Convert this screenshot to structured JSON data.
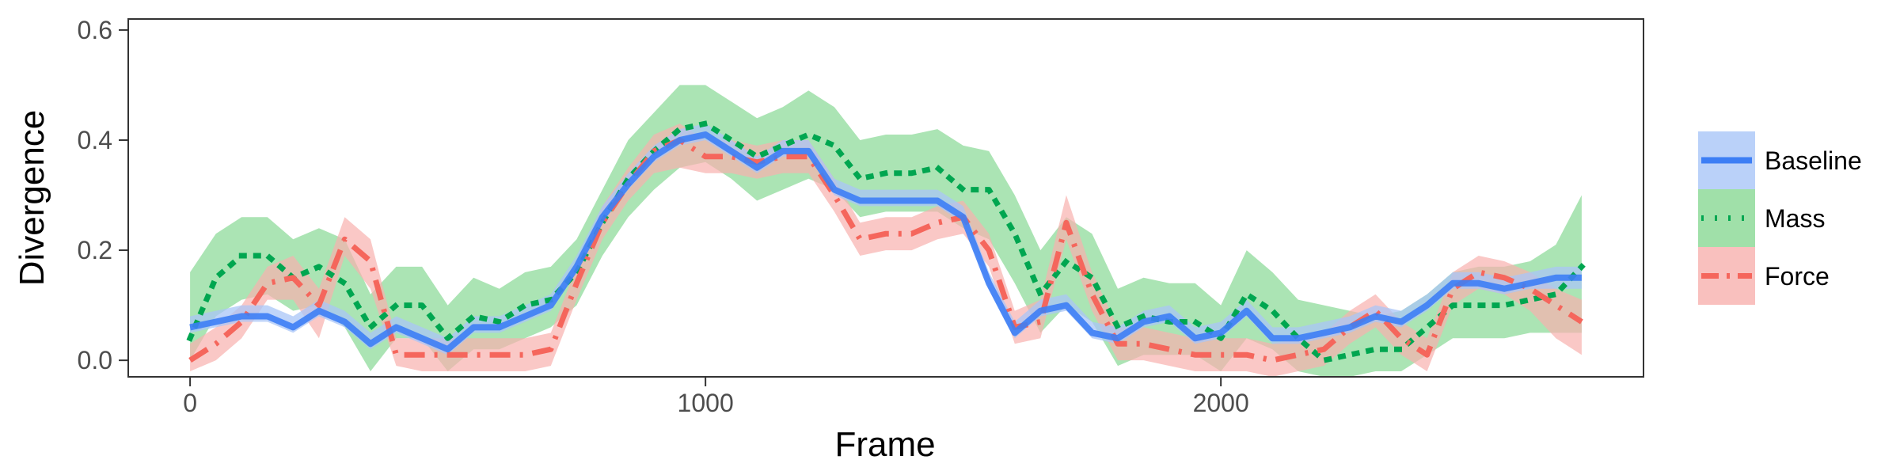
{
  "chart_data": {
    "type": "line",
    "xlabel": "Frame",
    "ylabel": "Divergence",
    "xlim": [
      -120,
      2820
    ],
    "ylim": [
      -0.03,
      0.62
    ],
    "xticks": [
      0,
      1000,
      2000
    ],
    "xtick_labels": [
      "0",
      "1000",
      "2000"
    ],
    "yticks": [
      0.0,
      0.2,
      0.4,
      0.6
    ],
    "ytick_labels": [
      "0.0",
      "0.2",
      "0.4",
      "0.6"
    ],
    "grid": false,
    "legend": "right",
    "x": [
      0,
      50,
      100,
      150,
      200,
      250,
      300,
      350,
      400,
      450,
      500,
      550,
      600,
      650,
      700,
      750,
      800,
      850,
      900,
      950,
      1000,
      1050,
      1100,
      1150,
      1200,
      1250,
      1300,
      1350,
      1400,
      1450,
      1500,
      1550,
      1600,
      1650,
      1700,
      1750,
      1800,
      1850,
      1900,
      1950,
      2000,
      2050,
      2100,
      2150,
      2200,
      2250,
      2300,
      2350,
      2400,
      2450,
      2500,
      2550,
      2600,
      2650,
      2700
    ],
    "series": [
      {
        "name": "Baseline",
        "color": "#3d7ef5",
        "style": "solid",
        "values": [
          0.06,
          0.07,
          0.08,
          0.08,
          0.06,
          0.09,
          0.07,
          0.03,
          0.06,
          0.04,
          0.02,
          0.06,
          0.06,
          0.08,
          0.1,
          0.17,
          0.26,
          0.32,
          0.37,
          0.4,
          0.41,
          0.38,
          0.35,
          0.38,
          0.38,
          0.31,
          0.29,
          0.29,
          0.29,
          0.29,
          0.26,
          0.14,
          0.05,
          0.09,
          0.1,
          0.05,
          0.04,
          0.07,
          0.08,
          0.04,
          0.05,
          0.09,
          0.04,
          0.04,
          0.05,
          0.06,
          0.08,
          0.07,
          0.1,
          0.14,
          0.14,
          0.13,
          0.14,
          0.15,
          0.15
        ],
        "lower": [
          0.05,
          0.06,
          0.07,
          0.07,
          0.05,
          0.08,
          0.06,
          0.02,
          0.05,
          0.03,
          0.01,
          0.05,
          0.05,
          0.07,
          0.09,
          0.16,
          0.25,
          0.31,
          0.36,
          0.39,
          0.4,
          0.37,
          0.34,
          0.37,
          0.37,
          0.3,
          0.28,
          0.28,
          0.28,
          0.28,
          0.25,
          0.13,
          0.04,
          0.08,
          0.09,
          0.04,
          0.03,
          0.06,
          0.07,
          0.03,
          0.04,
          0.08,
          0.03,
          0.03,
          0.04,
          0.05,
          0.07,
          0.06,
          0.09,
          0.13,
          0.13,
          0.12,
          0.13,
          0.13,
          0.13
        ],
        "upper": [
          0.08,
          0.09,
          0.1,
          0.1,
          0.08,
          0.11,
          0.09,
          0.05,
          0.08,
          0.06,
          0.04,
          0.08,
          0.08,
          0.1,
          0.12,
          0.19,
          0.28,
          0.34,
          0.39,
          0.42,
          0.43,
          0.4,
          0.37,
          0.4,
          0.4,
          0.33,
          0.31,
          0.31,
          0.31,
          0.31,
          0.28,
          0.16,
          0.07,
          0.11,
          0.12,
          0.07,
          0.06,
          0.09,
          0.1,
          0.06,
          0.07,
          0.11,
          0.06,
          0.06,
          0.07,
          0.08,
          0.1,
          0.09,
          0.12,
          0.16,
          0.16,
          0.15,
          0.16,
          0.17,
          0.17
        ]
      },
      {
        "name": "Mass",
        "color": "#00a650",
        "fill": "#88d894",
        "style": "dotted",
        "values": [
          0.04,
          0.15,
          0.19,
          0.19,
          0.15,
          0.17,
          0.14,
          0.06,
          0.1,
          0.1,
          0.04,
          0.08,
          0.07,
          0.1,
          0.11,
          0.16,
          0.25,
          0.33,
          0.38,
          0.42,
          0.43,
          0.4,
          0.37,
          0.39,
          0.41,
          0.39,
          0.33,
          0.34,
          0.34,
          0.35,
          0.31,
          0.31,
          0.23,
          0.12,
          0.18,
          0.15,
          0.06,
          0.08,
          0.07,
          0.07,
          0.04,
          0.12,
          0.09,
          0.04,
          0.0,
          0.01,
          0.02,
          0.02,
          0.06,
          0.1,
          0.1,
          0.1,
          0.11,
          0.12,
          0.17
        ],
        "lower": [
          0.0,
          0.08,
          0.11,
          0.12,
          0.09,
          0.1,
          0.06,
          -0.02,
          0.04,
          0.04,
          -0.02,
          0.02,
          0.02,
          0.04,
          0.06,
          0.1,
          0.19,
          0.26,
          0.31,
          0.35,
          0.36,
          0.33,
          0.29,
          0.31,
          0.33,
          0.31,
          0.26,
          0.27,
          0.27,
          0.27,
          0.24,
          0.22,
          0.14,
          0.05,
          0.1,
          0.07,
          -0.01,
          0.01,
          0.01,
          0.01,
          -0.02,
          0.04,
          0.02,
          -0.02,
          -0.03,
          -0.03,
          -0.02,
          -0.02,
          0.01,
          0.04,
          0.04,
          0.04,
          0.05,
          0.05,
          0.05
        ],
        "upper": [
          0.16,
          0.23,
          0.26,
          0.26,
          0.22,
          0.24,
          0.22,
          0.12,
          0.17,
          0.17,
          0.1,
          0.15,
          0.13,
          0.16,
          0.17,
          0.22,
          0.31,
          0.4,
          0.45,
          0.5,
          0.5,
          0.47,
          0.44,
          0.46,
          0.49,
          0.46,
          0.4,
          0.41,
          0.41,
          0.42,
          0.39,
          0.38,
          0.3,
          0.2,
          0.26,
          0.23,
          0.13,
          0.15,
          0.14,
          0.14,
          0.1,
          0.2,
          0.16,
          0.11,
          0.1,
          0.09,
          0.08,
          0.09,
          0.12,
          0.16,
          0.17,
          0.17,
          0.18,
          0.21,
          0.3
        ]
      },
      {
        "name": "Force",
        "color": "#f5665c",
        "fill": "#f8b0ae",
        "style": "dashdot",
        "values": [
          0.0,
          0.03,
          0.07,
          0.14,
          0.15,
          0.1,
          0.22,
          0.18,
          0.01,
          0.01,
          0.01,
          0.01,
          0.01,
          0.01,
          0.02,
          0.14,
          0.25,
          0.32,
          0.38,
          0.4,
          0.37,
          0.37,
          0.36,
          0.37,
          0.37,
          0.3,
          0.22,
          0.23,
          0.23,
          0.25,
          0.26,
          0.2,
          0.06,
          0.07,
          0.25,
          0.12,
          0.03,
          0.03,
          0.02,
          0.01,
          0.01,
          0.01,
          0.0,
          0.01,
          0.02,
          0.06,
          0.09,
          0.04,
          0.01,
          0.13,
          0.16,
          0.15,
          0.13,
          0.1,
          0.07
        ],
        "lower": [
          -0.02,
          0.0,
          0.04,
          0.11,
          0.11,
          0.04,
          0.19,
          0.13,
          -0.01,
          -0.02,
          -0.02,
          -0.02,
          -0.02,
          -0.02,
          -0.01,
          0.11,
          0.22,
          0.29,
          0.34,
          0.35,
          0.34,
          0.34,
          0.33,
          0.34,
          0.34,
          0.27,
          0.19,
          0.2,
          0.2,
          0.22,
          0.23,
          0.17,
          0.03,
          0.04,
          0.22,
          0.09,
          0.0,
          0.0,
          -0.01,
          -0.02,
          -0.02,
          -0.02,
          -0.03,
          -0.02,
          -0.01,
          0.03,
          0.06,
          0.01,
          -0.02,
          0.1,
          0.13,
          0.12,
          0.09,
          0.04,
          0.01
        ],
        "upper": [
          0.03,
          0.06,
          0.1,
          0.17,
          0.19,
          0.13,
          0.26,
          0.22,
          0.04,
          0.04,
          0.04,
          0.04,
          0.04,
          0.04,
          0.05,
          0.17,
          0.28,
          0.35,
          0.41,
          0.43,
          0.4,
          0.4,
          0.39,
          0.4,
          0.4,
          0.33,
          0.25,
          0.26,
          0.26,
          0.28,
          0.29,
          0.23,
          0.09,
          0.11,
          0.3,
          0.16,
          0.06,
          0.06,
          0.05,
          0.04,
          0.04,
          0.04,
          0.03,
          0.04,
          0.05,
          0.09,
          0.12,
          0.07,
          0.04,
          0.16,
          0.19,
          0.18,
          0.16,
          0.13,
          0.11
        ]
      }
    ]
  }
}
